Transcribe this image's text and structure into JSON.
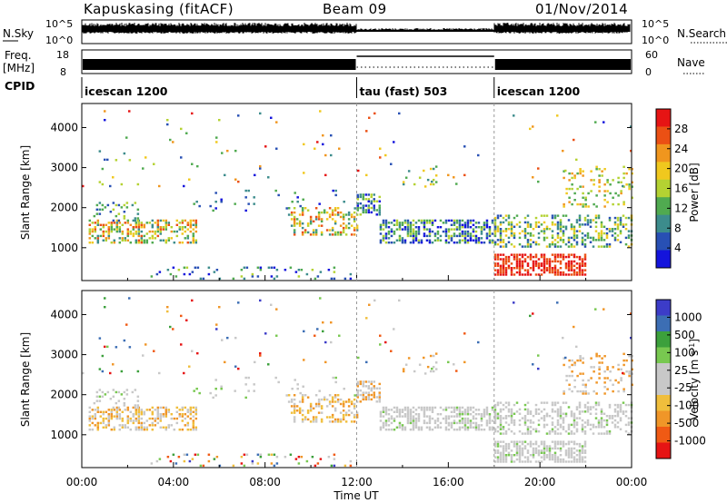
{
  "header": {
    "station": "Kapuskasing (fitACF)",
    "beam": "Beam 09",
    "date": "01/Nov/2014"
  },
  "top_panels": {
    "nsky_label": "N.Sky",
    "nsky_ticks": [
      "10^5",
      "10^0"
    ],
    "nsearch_label": "N.Search",
    "nsearch_ticks": [
      "10^5",
      "10^0"
    ],
    "freq_label": "Freq.",
    "freq_unit": "[MHz]",
    "freq_ticks": [
      "18",
      "8"
    ],
    "nave_label": "Nave",
    "nave_ticks": [
      "60",
      "0"
    ],
    "cpid_label": "CPID",
    "cpid_segments": [
      {
        "name": "icescan 1200",
        "start_hour": 0,
        "end_hour": 12
      },
      {
        "name": "tau (fast) 503",
        "start_hour": 12,
        "end_hour": 18
      },
      {
        "name": "icescan 1200",
        "start_hour": 18,
        "end_hour": 24
      }
    ]
  },
  "colors": {
    "power": [
      "#1414dc",
      "#2850b4",
      "#3c8c8c",
      "#50aa50",
      "#b4d232",
      "#f0c81e",
      "#f0961e",
      "#eb5014",
      "#e61414"
    ],
    "velocity": [
      "#e61414",
      "#f05a14",
      "#f09628",
      "#f0be3c",
      "#c8c8c8",
      "#c8c8c8",
      "#78c850",
      "#3ca03c",
      "#3c6eb4",
      "#3c3cc8"
    ]
  },
  "chart_data": [
    {
      "type": "heatmap",
      "name": "power",
      "xlabel": "",
      "ylabel": "Slant Range [km]",
      "xlim": [
        0,
        24
      ],
      "ylim": [
        180,
        4600
      ],
      "yticks": [
        "1000",
        "2000",
        "3000",
        "4000"
      ],
      "colorbar_label": "Power [dB]",
      "colorbar_ticks": [
        "4",
        "8",
        "12",
        "16",
        "20",
        "24",
        "28"
      ],
      "colorbar_range": [
        0,
        30
      ],
      "grid": false
    },
    {
      "type": "heatmap",
      "name": "velocity",
      "xlabel": "Time UT",
      "ylabel": "Slant Range [km]",
      "xlim": [
        0,
        24
      ],
      "ylim": [
        180,
        4600
      ],
      "xticks": [
        "00:00",
        "04:00",
        "08:00",
        "12:00",
        "16:00",
        "20:00",
        "00:00"
      ],
      "yticks": [
        "1000",
        "2000",
        "3000",
        "4000"
      ],
      "colorbar_label": "Velocity [m s",
      "colorbar_exponent": "-1",
      "colorbar_label_close": "]",
      "colorbar_ticks": [
        "1000",
        "500",
        "100",
        "25",
        "-25",
        "-100",
        "-500",
        "-1000"
      ],
      "grid": false
    }
  ]
}
